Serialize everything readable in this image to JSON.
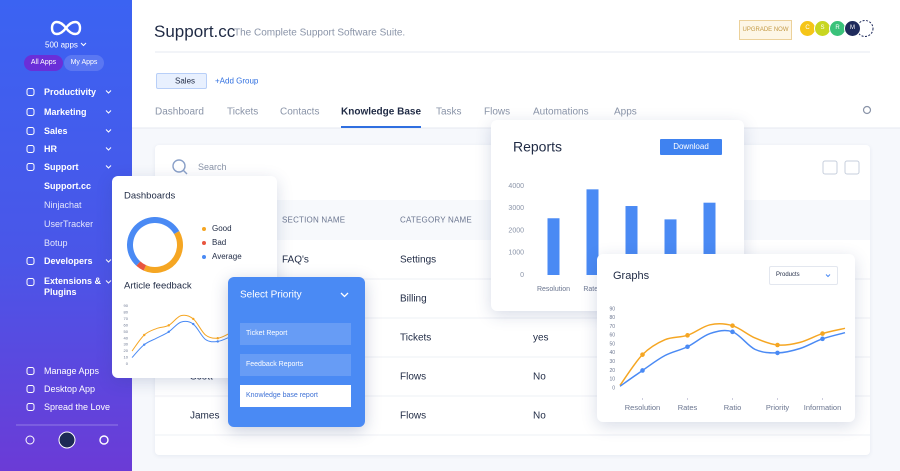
{
  "sidebar": {
    "brand": "500 apps",
    "buttons": [
      "All Apps",
      "My Apps"
    ],
    "nav_top": [
      "Productivity",
      "Marketing",
      "Sales",
      "HR",
      "Support"
    ],
    "apps": [
      "Support.cc",
      "Ninjachat",
      "UserTracker",
      "Botup"
    ],
    "active_app": 0,
    "nav_more": [
      "Developers",
      "Extensions & Plugins"
    ],
    "bottom": [
      "Manage Apps",
      "Desktop App",
      "Spread the Love"
    ]
  },
  "header": {
    "title": "Support.cc",
    "subtitle": "The Complete Support Software Suite.",
    "upgrade": "UPGRADE NOW",
    "avatars": [
      "C",
      "S",
      "R",
      "M"
    ]
  },
  "filter": {
    "chip": "Sales",
    "add": "+Add Group"
  },
  "tabs": {
    "items": [
      "Dashboard",
      "Tickets",
      "Contacts",
      "Knowledge Base",
      "Tasks",
      "Flows",
      "Automations",
      "Apps"
    ],
    "active": 3
  },
  "table": {
    "search": "Search",
    "columns": [
      "SECTION NAME",
      "CATEGORY NAME"
    ],
    "rows": [
      [
        null,
        "FAQ's",
        "Settings",
        null
      ],
      [
        null,
        null,
        "Billing",
        null
      ],
      [
        null,
        null,
        "Tickets",
        "yes"
      ],
      [
        "Scott",
        null,
        "Flows",
        "No"
      ],
      [
        "James",
        null,
        "Flows",
        "No"
      ]
    ]
  },
  "priority": {
    "title": "Select Priority",
    "options": [
      "Ticket Report",
      "Feedback Reports",
      "Knowledge base report"
    ],
    "selected": 2
  },
  "reports_card": {
    "download": "Download"
  },
  "graphs_card": {
    "dropdown": "Products"
  },
  "chart_data": [
    {
      "type": "pie",
      "title": "Dashboards",
      "donut": true,
      "categories": [
        "Good",
        "Bad",
        "Average"
      ],
      "values": [
        40,
        5,
        55
      ],
      "colors": [
        "#f5a623",
        "#e8553e",
        "#4a8af4"
      ]
    },
    {
      "type": "line",
      "title": "Article feedback",
      "x": [
        0,
        1,
        2,
        3,
        4,
        5,
        6,
        7,
        8
      ],
      "xlim": [
        0,
        8
      ],
      "ylim": [
        0,
        90
      ],
      "yticks": [
        0,
        10,
        20,
        30,
        40,
        50,
        60,
        70,
        80,
        90
      ],
      "series": [
        {
          "name": null,
          "color": "#f5a623",
          "values": [
            20,
            45,
            55,
            60,
            75,
            70,
            45,
            40,
            48
          ]
        },
        {
          "name": null,
          "color": "#4a8af4",
          "values": [
            10,
            30,
            40,
            50,
            65,
            62,
            38,
            35,
            42
          ]
        }
      ]
    },
    {
      "type": "bar",
      "title": "Reports",
      "categories": [
        "Resolution",
        "Rates",
        null,
        null,
        null
      ],
      "values": [
        2550,
        3850,
        3100,
        2500,
        3250
      ],
      "color": "#4a8af4",
      "ylim": [
        0,
        4000
      ],
      "yticks": [
        0,
        1000,
        2000,
        3000,
        4000
      ],
      "grid": false
    },
    {
      "type": "line",
      "title": "Graphs",
      "x": [
        0,
        1,
        2,
        3,
        4,
        5,
        6,
        7,
        8,
        9,
        10
      ],
      "xlim": [
        0,
        10
      ],
      "xticks": [
        {
          "value": 1,
          "label": "Resolution"
        },
        {
          "value": 3,
          "label": "Rates"
        },
        {
          "value": 5,
          "label": "Ratio"
        },
        {
          "value": 7,
          "label": "Priority"
        },
        {
          "value": 9,
          "label": "Information"
        }
      ],
      "ylim": [
        0,
        90
      ],
      "yticks": [
        0,
        10,
        20,
        30,
        40,
        50,
        60,
        70,
        80,
        90
      ],
      "series": [
        {
          "name": null,
          "color": "#f5a623",
          "values": [
            3,
            38,
            55,
            60,
            72,
            71,
            57,
            49,
            52,
            62,
            68
          ]
        },
        {
          "name": null,
          "color": "#4a8af4",
          "values": [
            2,
            20,
            37,
            47,
            62,
            64,
            44,
            40,
            45,
            56,
            63
          ]
        }
      ]
    }
  ]
}
